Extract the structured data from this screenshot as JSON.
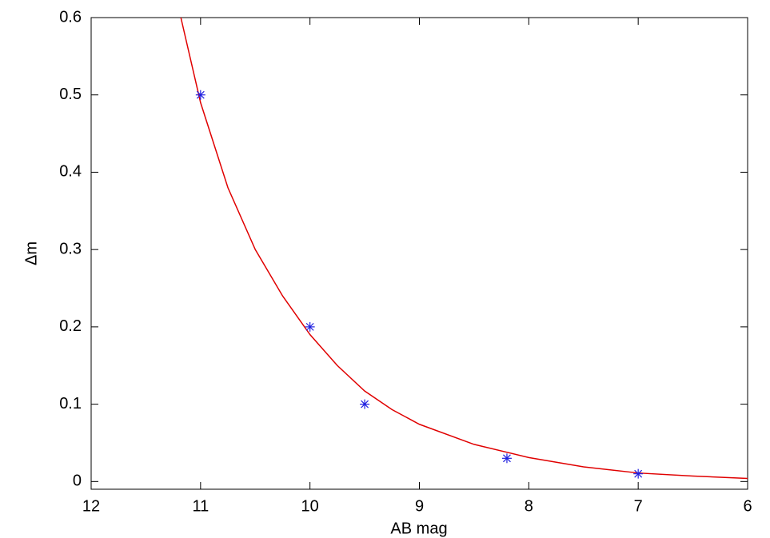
{
  "chart_data": {
    "type": "scatter",
    "xlabel": "AB mag",
    "ylabel": "Δm",
    "xlim": [
      12,
      6
    ],
    "ylim": [
      -0.01,
      0.6
    ],
    "xticks": [
      12,
      11,
      10,
      9,
      8,
      7,
      6
    ],
    "yticks": [
      0,
      0.1,
      0.2,
      0.3,
      0.4,
      0.5,
      0.6
    ],
    "series": [
      {
        "type": "scatter",
        "color": "#2020e0",
        "x": [
          11,
          10,
          9.5,
          8.2,
          7
        ],
        "values": [
          0.5,
          0.2,
          0.1,
          0.03,
          0.01
        ]
      },
      {
        "type": "line",
        "color": "#e00000",
        "x": [
          11.18,
          11,
          10.75,
          10.5,
          10.25,
          10,
          9.75,
          9.5,
          9.25,
          9,
          8.5,
          8,
          7.5,
          7,
          6.5,
          6
        ],
        "values": [
          0.6,
          0.49,
          0.38,
          0.3,
          0.24,
          0.19,
          0.15,
          0.117,
          0.093,
          0.074,
          0.048,
          0.031,
          0.019,
          0.011,
          0.007,
          0.004
        ]
      }
    ]
  }
}
